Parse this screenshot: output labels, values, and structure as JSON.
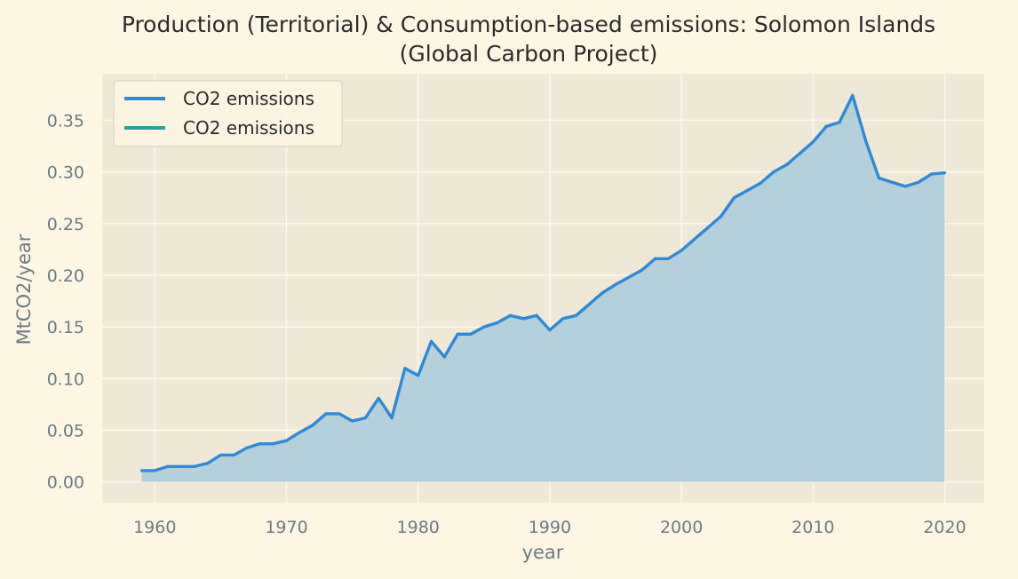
{
  "colors": {
    "page_background": "#fdf6e3",
    "plot_background": "#efe8d7",
    "grid": "#fbf7ee",
    "line": "#2e8ad8",
    "fill": "#a9cbdc",
    "second_series": "#2aa198",
    "tick_text": "#6b7b86",
    "title_text": "#2b2b2b"
  },
  "chart_data": {
    "type": "area",
    "title": "Production (Territorial) & Consumption-based emissions: Solomon Islands",
    "subtitle": "(Global Carbon Project)",
    "xlabel": "year",
    "ylabel": "MtCO2/year",
    "xlim": [
      1956,
      2023
    ],
    "ylim": [
      -0.02,
      0.395
    ],
    "xticks": [
      1960,
      1970,
      1980,
      1990,
      2000,
      2010,
      2020
    ],
    "xtick_labels": [
      "1960",
      "1970",
      "1980",
      "1990",
      "2000",
      "2010",
      "2020"
    ],
    "yticks": [
      0.0,
      0.05,
      0.1,
      0.15,
      0.2,
      0.25,
      0.3,
      0.35
    ],
    "ytick_labels": [
      "0.00",
      "0.05",
      "0.10",
      "0.15",
      "0.20",
      "0.25",
      "0.30",
      "0.35"
    ],
    "grid": true,
    "legend_position": "top-left",
    "legend": [
      "CO2 emissions",
      "CO2 emissions"
    ],
    "series": [
      {
        "name": "CO2 emissions",
        "x": [
          1959,
          1960,
          1961,
          1962,
          1963,
          1964,
          1965,
          1966,
          1967,
          1968,
          1969,
          1970,
          1971,
          1972,
          1973,
          1974,
          1975,
          1976,
          1977,
          1978,
          1979,
          1980,
          1981,
          1982,
          1983,
          1984,
          1985,
          1986,
          1987,
          1988,
          1989,
          1990,
          1991,
          1992,
          1993,
          1994,
          1995,
          1996,
          1997,
          1998,
          1999,
          2000,
          2001,
          2002,
          2003,
          2004,
          2005,
          2006,
          2007,
          2008,
          2009,
          2010,
          2011,
          2012,
          2013,
          2014,
          2015,
          2016,
          2017,
          2018,
          2019,
          2020
        ],
        "values": [
          0.011,
          0.011,
          0.015,
          0.015,
          0.015,
          0.018,
          0.026,
          0.026,
          0.033,
          0.037,
          0.037,
          0.04,
          0.048,
          0.055,
          0.066,
          0.066,
          0.059,
          0.062,
          0.081,
          0.062,
          0.11,
          0.103,
          0.136,
          0.121,
          0.143,
          0.143,
          0.15,
          0.154,
          0.161,
          0.158,
          0.161,
          0.147,
          0.158,
          0.161,
          0.172,
          0.183,
          0.191,
          0.198,
          0.205,
          0.216,
          0.216,
          0.224,
          0.235,
          0.246,
          0.257,
          0.275,
          0.282,
          0.289,
          0.3,
          0.307,
          0.318,
          0.329,
          0.344,
          0.348,
          0.374,
          0.33,
          0.294,
          0.29,
          0.286,
          0.29,
          0.298,
          0.299
        ]
      },
      {
        "name": "CO2 emissions",
        "x": [],
        "values": []
      }
    ]
  }
}
